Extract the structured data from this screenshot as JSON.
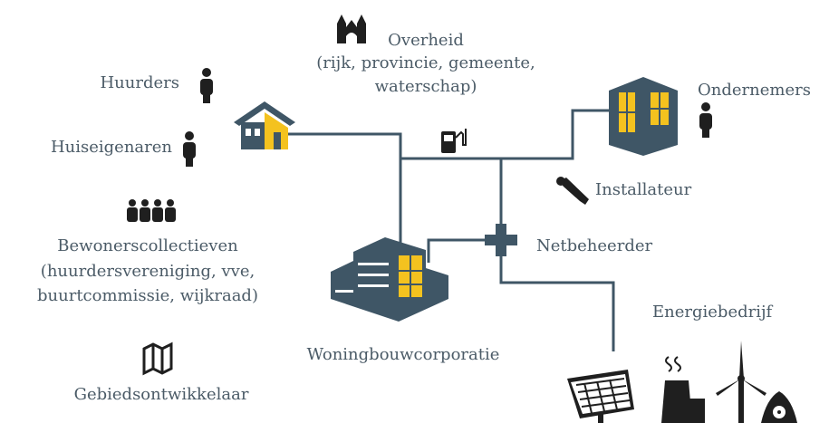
{
  "nodes": [
    {
      "lines": [
        "Overheid",
        "(rijk, provincie, gemeente,",
        "waterschap)"
      ]
    },
    {
      "lines": [
        "Huurders"
      ]
    },
    {
      "lines": [
        "Huiseigenaren"
      ]
    },
    {
      "lines": [
        "Bewonerscollectieven",
        "(huurdersvereniging, vve,",
        "buurtcommissie, wijkraad)"
      ]
    },
    {
      "lines": [
        "Gebiedsontwikkelaar"
      ]
    },
    {
      "lines": [
        "Woningbouwcorporatie"
      ]
    },
    {
      "lines": [
        "Ondernemers"
      ]
    },
    {
      "lines": [
        "Installateur"
      ]
    },
    {
      "lines": [
        "Netbeheerder"
      ]
    },
    {
      "lines": [
        "Energiebedrijf"
      ]
    }
  ]
}
